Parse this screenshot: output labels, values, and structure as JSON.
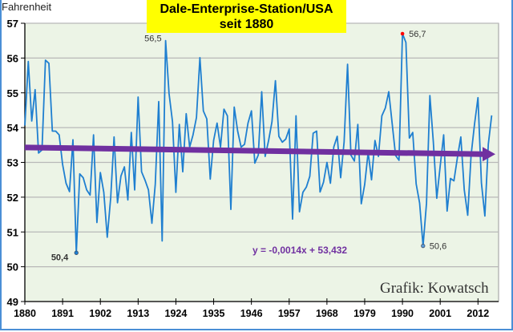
{
  "chart_data": {
    "type": "line",
    "title": [
      "Dale-Enterprise-Station/USA",
      "seit 1880"
    ],
    "ylabel": "Fahrenheit",
    "xlabel": "",
    "xlim": [
      1880,
      2018
    ],
    "ylim": [
      49,
      57
    ],
    "x_ticks": [
      1880,
      1891,
      1902,
      1913,
      1924,
      1935,
      1946,
      1957,
      1968,
      1979,
      1990,
      2001,
      2012
    ],
    "y_ticks": [
      49,
      50,
      51,
      52,
      53,
      54,
      55,
      56,
      57
    ],
    "grid": "horizontal",
    "x_start": 1880,
    "series": [
      {
        "color": "#1f7fd0",
        "values": [
          54.06,
          55.9,
          54.19,
          55.09,
          53.27,
          53.36,
          55.94,
          55.85,
          53.9,
          53.9,
          53.79,
          52.94,
          52.4,
          52.16,
          53.65,
          50.4,
          52.67,
          52.56,
          52.21,
          52.06,
          53.79,
          51.27,
          52.71,
          52.14,
          50.85,
          51.98,
          53.73,
          51.84,
          52.61,
          52.87,
          51.92,
          53.86,
          52.21,
          54.88,
          52.73,
          52.49,
          52.21,
          51.25,
          52.37,
          54.75,
          50.74,
          56.5,
          54.98,
          54.17,
          52.14,
          54.09,
          52.73,
          54.4,
          53.44,
          53.79,
          54.29,
          56.01,
          54.48,
          54.25,
          52.52,
          53.63,
          54.13,
          53.44,
          54.53,
          54.34,
          51.65,
          54.59,
          53.9,
          53.44,
          53.52,
          54.13,
          54.48,
          52.98,
          53.21,
          55.03,
          53.17,
          53.63,
          54.17,
          55.35,
          53.75,
          53.58,
          53.67,
          53.96,
          51.37,
          54.34,
          51.58,
          52.14,
          52.29,
          52.6,
          53.84,
          53.9,
          52.15,
          52.43,
          53.0,
          52.4,
          53.44,
          53.75,
          52.56,
          53.59,
          55.82,
          53.21,
          53.04,
          54.09,
          51.81,
          52.37,
          53.29,
          52.5,
          53.63,
          53.17,
          54.34,
          54.56,
          55.03,
          54.13,
          53.2,
          53.06,
          56.7,
          56.45,
          53.7,
          53.86,
          52.38,
          51.83,
          50.6,
          51.83,
          54.92,
          53.59,
          51.97,
          52.9,
          53.79,
          51.6,
          52.54,
          52.47,
          53.13,
          53.73,
          52.21,
          51.48,
          53.2,
          54.1,
          54.86,
          52.41,
          51.46,
          53.52,
          54.35
        ]
      }
    ],
    "trendline": {
      "equation": "y = -0,0014x + 53,432",
      "slope": -0.0014,
      "intercept": 53.432,
      "color": "#7030a0"
    },
    "annotations": [
      {
        "year": 1895,
        "value": 50.4,
        "label": "50,4",
        "color": "#1f7fd0"
      },
      {
        "year": 1921,
        "value": 56.5,
        "label": "56,5"
      },
      {
        "year": 1990,
        "value": 56.7,
        "label": "56,7",
        "color": "#ff0000"
      },
      {
        "year": 1996,
        "value": 50.6,
        "label": "50,6",
        "color": "#5b9bd5"
      }
    ],
    "credit": "Grafik: Kowatsch",
    "colors": {
      "plot_background": "#ecf4e6",
      "title_background": "#ffff00",
      "frame": "#4a8fd6"
    }
  }
}
